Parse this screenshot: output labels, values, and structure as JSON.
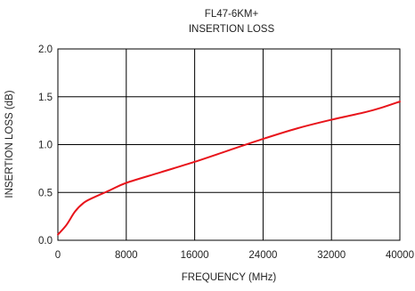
{
  "chart_data": {
    "type": "line",
    "title": "FL47-6KM+",
    "subtitle": "INSERTION LOSS",
    "xlabel": "FREQUENCY (MHz)",
    "ylabel": "INSERTION LOSS (dB)",
    "xlim": [
      0,
      40000
    ],
    "ylim": [
      0,
      2.0
    ],
    "x_ticks": [
      0,
      8000,
      16000,
      24000,
      32000,
      40000
    ],
    "x_tick_labels": [
      "0",
      "8000",
      "16000",
      "24000",
      "32000",
      "40000"
    ],
    "y_ticks": [
      0,
      0.5,
      1.0,
      1.5,
      2.0
    ],
    "y_tick_labels": [
      "0.0",
      "0.5",
      "1.0",
      "1.5",
      "2.0"
    ],
    "grid": true,
    "legend": "none",
    "series": [
      {
        "color": "#e8141b",
        "x": [
          10,
          1000,
          2000,
          3000,
          4000,
          6000,
          8000,
          12000,
          16000,
          20000,
          24000,
          28000,
          32000,
          36000,
          38000,
          40000
        ],
        "y": [
          0.06,
          0.16,
          0.3,
          0.39,
          0.44,
          0.52,
          0.6,
          0.71,
          0.82,
          0.94,
          1.06,
          1.17,
          1.26,
          1.34,
          1.39,
          1.45
        ]
      }
    ]
  }
}
